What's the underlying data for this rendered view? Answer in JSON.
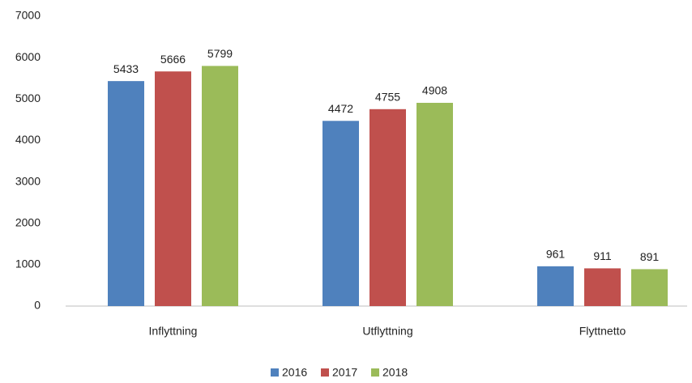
{
  "chart_data": {
    "type": "bar",
    "categories": [
      "Inflyttning",
      "Utflyttning",
      "Flyttnetto"
    ],
    "series": [
      {
        "name": "2016",
        "color": "#4f81bd",
        "values": [
          5433,
          4472,
          961
        ]
      },
      {
        "name": "2017",
        "color": "#c0504d",
        "values": [
          5666,
          4755,
          911
        ]
      },
      {
        "name": "2018",
        "color": "#9bbb59",
        "values": [
          5799,
          4908,
          891
        ]
      }
    ],
    "ylim": [
      0,
      7000
    ],
    "yticks": [
      0,
      1000,
      2000,
      3000,
      4000,
      5000,
      6000,
      7000
    ],
    "grid": false,
    "legend": "bottom"
  }
}
